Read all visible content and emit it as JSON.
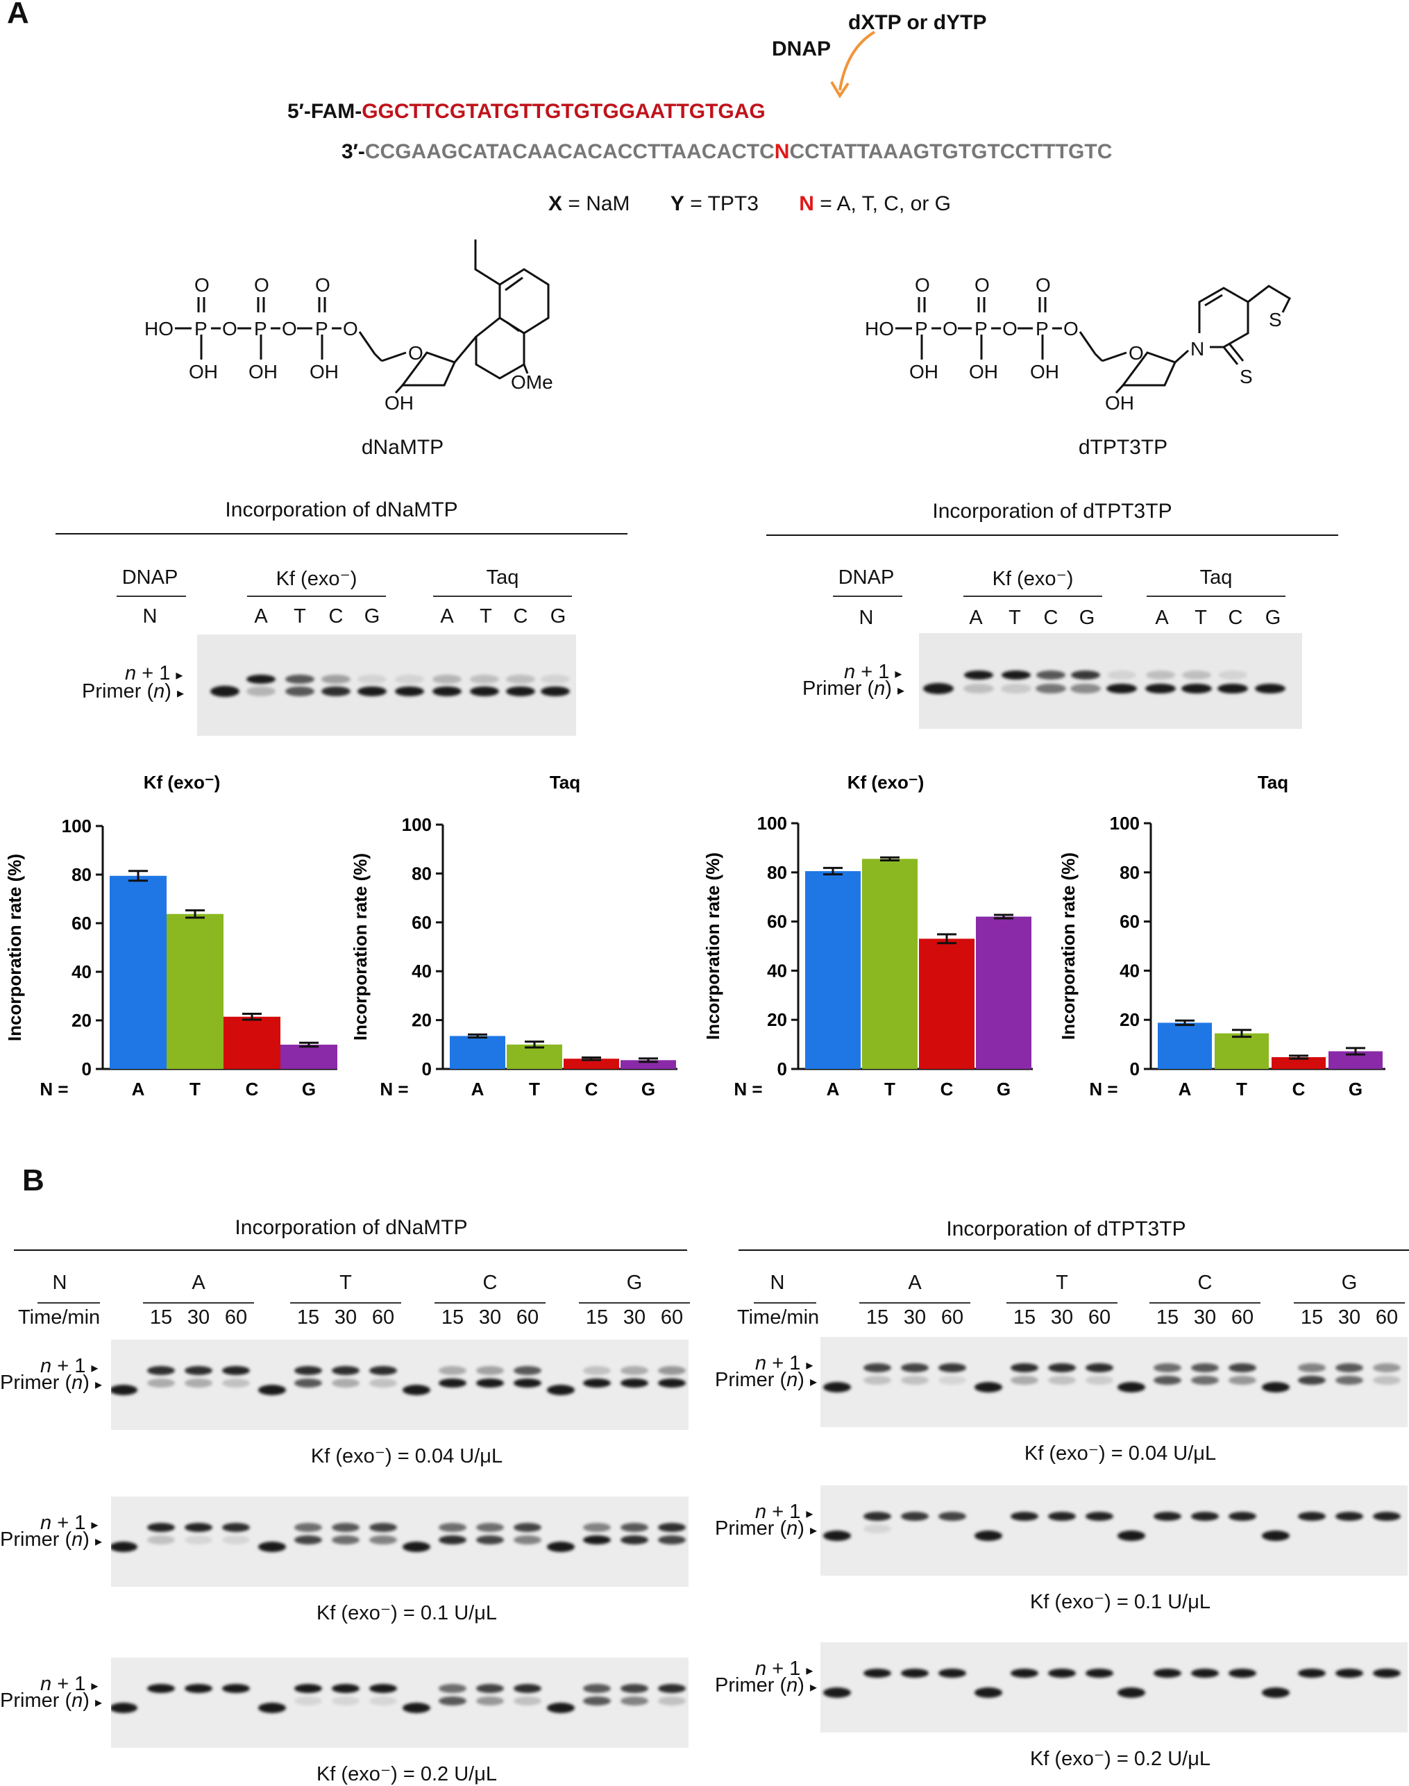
{
  "panelA": {
    "label": "A",
    "dnap_label": "DNAP",
    "dxtp_label": "dXTP or dYTP",
    "primer_prefix": "5′-FAM-",
    "primer_seq": "GGCTTCGTATGTTGTGTGGAATTGTGAG",
    "template_prefix": "3′-",
    "template_seq_a": "CCGAAGCATACAACACACCTTAACACTC",
    "template_n": "N",
    "template_seq_b": "CCTATTAAAGTGTGTCCTTTGTC",
    "legend_x_key": "X",
    "legend_x_val": " = NaM",
    "legend_y_key": "Y",
    "legend_y_val": " = TPT3",
    "legend_n_key": "N",
    "legend_n_val": " = A, T, C, or G",
    "compound_left": "dNaMTP",
    "compound_right": "dTPT3TP",
    "chem": {
      "O": "O",
      "HO": "HO",
      "OH": "OH",
      "OMe": "OMe",
      "S": "S",
      "N": "N",
      "P": "P"
    },
    "gel_left": {
      "title": "Incorporation of dNaMTP",
      "dnap": "DNAP",
      "n_col": "N",
      "kf": "Kf (exo⁻)",
      "taq": "Taq",
      "kf_lanes": [
        "A",
        "T",
        "C",
        "G"
      ],
      "taq_lanes": [
        "A",
        "T",
        "C",
        "G"
      ],
      "n_plus_1_n": "n",
      "n_plus_1_rest": " + 1",
      "primer_text": "Primer (",
      "primer_n": "n",
      "primer_close": ")"
    },
    "gel_right": {
      "title": "Incorporation of dTPT3TP",
      "dnap": "DNAP",
      "n_col": "N",
      "kf": "Kf (exo⁻)",
      "taq": "Taq",
      "kf_lanes": [
        "A",
        "T",
        "C",
        "G"
      ],
      "taq_lanes": [
        "A",
        "T",
        "C",
        "G"
      ],
      "n_plus_1_n": "n",
      "n_plus_1_rest": " + 1",
      "primer_text": "Primer (",
      "primer_n": "n",
      "primer_close": ")"
    }
  },
  "chart_data": [
    {
      "type": "bar",
      "title": "Kf (exo⁻)",
      "ylabel": "Incorporation rate (%)",
      "xprefix": "N  =",
      "categories": [
        "A",
        "T",
        "C",
        "G"
      ],
      "values": [
        79.5,
        63.8,
        21.5,
        10
      ],
      "errors": [
        2,
        1.5,
        1.2,
        0.8
      ],
      "ylim": [
        0,
        100
      ],
      "yticks": [
        0,
        20,
        40,
        60,
        80,
        100
      ],
      "colors": [
        "#1f77e6",
        "#8bb820",
        "#d40b0b",
        "#8a2aa8"
      ]
    },
    {
      "type": "bar",
      "title": "Taq",
      "ylabel": "Incorporation rate (%)",
      "xprefix": "N  =",
      "categories": [
        "A",
        "T",
        "C",
        "G"
      ],
      "values": [
        13.5,
        10,
        4.2,
        3.6
      ],
      "errors": [
        0.6,
        1.2,
        0.5,
        0.7
      ],
      "ylim": [
        0,
        100
      ],
      "yticks": [
        0,
        20,
        40,
        60,
        80,
        100
      ],
      "colors": [
        "#1f77e6",
        "#8bb820",
        "#d40b0b",
        "#8a2aa8"
      ]
    },
    {
      "type": "bar",
      "title": "Kf (exo⁻)",
      "ylabel": "Incorporation rate (%)",
      "xprefix": "N  =",
      "categories": [
        "A",
        "T",
        "C",
        "G"
      ],
      "values": [
        80.5,
        85.5,
        53,
        62
      ],
      "errors": [
        1.3,
        0.6,
        1.8,
        0.7
      ],
      "ylim": [
        0,
        100
      ],
      "yticks": [
        0,
        20,
        40,
        60,
        80,
        100
      ],
      "colors": [
        "#1f77e6",
        "#8bb820",
        "#d40b0b",
        "#8a2aa8"
      ]
    },
    {
      "type": "bar",
      "title": "Taq",
      "ylabel": "Incorporation rate (%)",
      "xprefix": "N  =",
      "categories": [
        "A",
        "T",
        "C",
        "G"
      ],
      "values": [
        18.8,
        14.5,
        4.8,
        7.2
      ],
      "errors": [
        0.9,
        1.4,
        0.6,
        1.3
      ],
      "ylim": [
        0,
        100
      ],
      "yticks": [
        0,
        20,
        40,
        60,
        80,
        100
      ],
      "colors": [
        "#1f77e6",
        "#8bb820",
        "#d40b0b",
        "#8a2aa8"
      ]
    }
  ],
  "panelB": {
    "label": "B",
    "left": {
      "title": "Incorporation of dNaMTP",
      "n_col": "N",
      "time_label": "Time/min",
      "groups": [
        "A",
        "T",
        "C",
        "G"
      ],
      "times": [
        "15",
        "30",
        "60"
      ],
      "gel_labels": [
        "Kf (exo⁻) = 0.04 U/μL",
        "Kf (exo⁻) = 0.1 U/μL",
        "Kf (exo⁻) = 0.2 U/μL"
      ]
    },
    "right": {
      "title": "Incorporation of dTPT3TP",
      "n_col": "N",
      "time_label": "Time/min",
      "groups": [
        "A",
        "T",
        "C",
        "G"
      ],
      "times": [
        "15",
        "30",
        "60"
      ],
      "gel_labels": [
        "Kf (exo⁻) = 0.04 U/μL",
        "Kf (exo⁻) = 0.1 U/μL",
        "Kf (exo⁻) = 0.2 U/μL"
      ]
    },
    "band_label_n": "n",
    "band_label_plus": " + 1",
    "band_label_primer": "Primer (",
    "band_label_close": ")"
  }
}
